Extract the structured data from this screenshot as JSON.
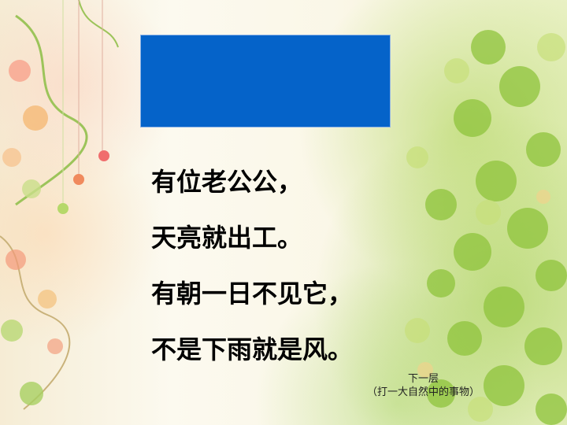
{
  "riddle": {
    "lines": [
      "有位老公公，",
      "天亮就出工。",
      "有朝一日不见它，",
      "不是下雨就是风。"
    ]
  },
  "hint": {
    "next_label": "下一层",
    "clue": "（打一大自然中的事物）"
  },
  "colors": {
    "title_box": "#0563c9",
    "text": "#000000"
  }
}
